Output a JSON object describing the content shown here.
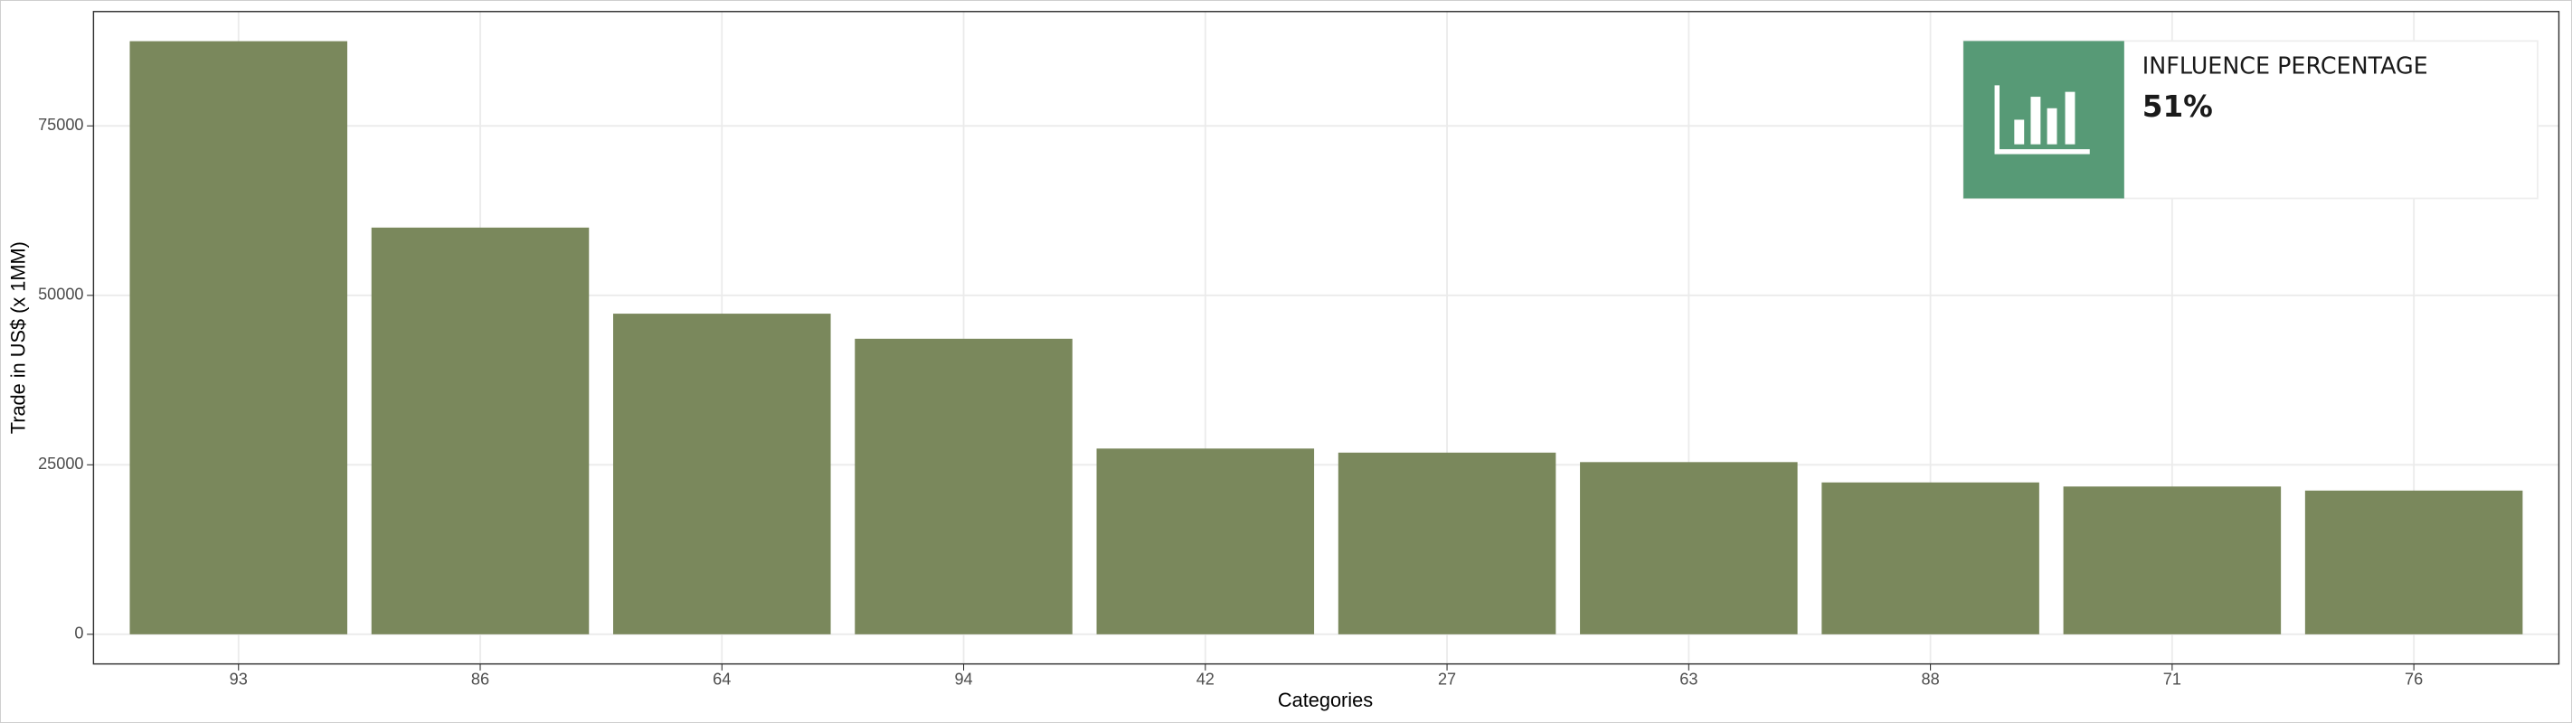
{
  "chart_data": {
    "type": "bar",
    "categories": [
      "93",
      "86",
      "64",
      "94",
      "42",
      "27",
      "63",
      "88",
      "71",
      "76"
    ],
    "values": [
      87500,
      60000,
      47300,
      43600,
      27400,
      26800,
      25400,
      22400,
      21800,
      21200
    ],
    "color": "#7a885c",
    "ylim": [
      -4375,
      91875
    ],
    "yticks": [
      0,
      25000,
      50000,
      75000
    ],
    "grid": true,
    "y_label": "Trade in US$ (x 1MM)",
    "x_label": "Categories"
  },
  "card": {
    "title": "INFLUENCE PERCENTAGE",
    "value": "51%",
    "color": "#579a76"
  }
}
